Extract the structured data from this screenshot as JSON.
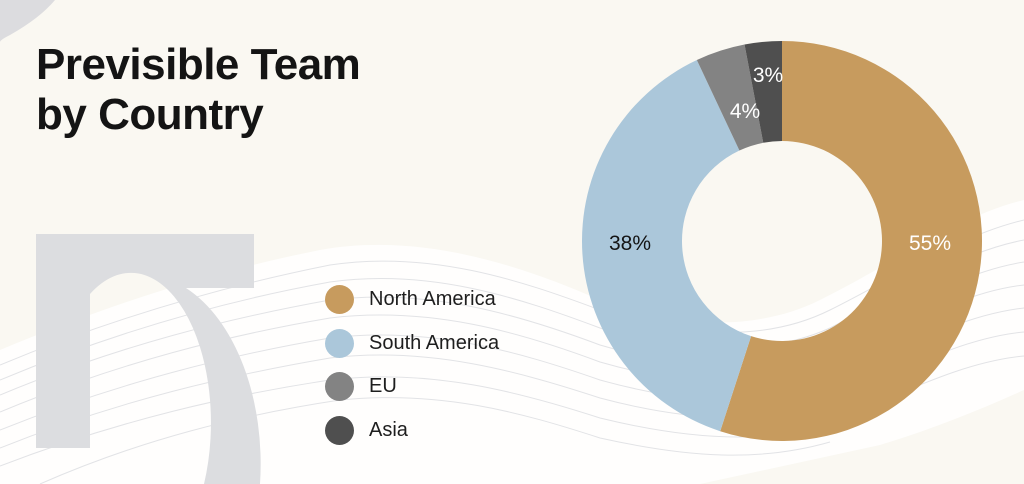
{
  "title": {
    "line1": "Previsible Team",
    "line2": "by Country"
  },
  "legend": [
    {
      "label": "North America",
      "color": "#c79b5e"
    },
    {
      "label": "South America",
      "color": "#abc7da"
    },
    {
      "label": "EU",
      "color": "#838383"
    },
    {
      "label": "Asia",
      "color": "#4f4f4f"
    }
  ],
  "chart_data": {
    "type": "pie",
    "subtype": "donut",
    "title": "Previsible Team by Country",
    "categories": [
      "North America",
      "South America",
      "EU",
      "Asia"
    ],
    "values": [
      55,
      38,
      4,
      3
    ],
    "unit": "%",
    "colors": [
      "#c79b5e",
      "#abc7da",
      "#838383",
      "#4f4f4f"
    ],
    "data_labels": [
      "55%",
      "38%",
      "4%",
      "3%"
    ],
    "legend_position": "left",
    "start_angle": "12 o'clock, clockwise"
  },
  "labels": {
    "na": "55%",
    "sa": "38%",
    "eu": "4%",
    "asia": "3%"
  }
}
